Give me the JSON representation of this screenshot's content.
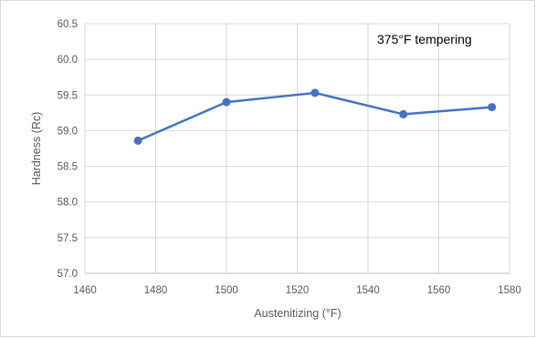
{
  "chart_data": {
    "type": "line",
    "title": "",
    "annotation": "375°F tempering",
    "xlabel": "Austenitizing (°F)",
    "ylabel": "Hardness (Rc)",
    "xlim": [
      1460,
      1580
    ],
    "ylim": [
      57.0,
      60.5
    ],
    "x_ticks": [
      "1460",
      "1480",
      "1500",
      "1520",
      "1540",
      "1560",
      "1580"
    ],
    "y_ticks": [
      "57.0",
      "57.5",
      "58.0",
      "58.5",
      "59.0",
      "59.5",
      "60.0",
      "60.5"
    ],
    "grid": true,
    "legend": "none",
    "series": [
      {
        "x": [
          1475,
          1500,
          1525,
          1550,
          1575
        ],
        "values": [
          58.86,
          59.4,
          59.53,
          59.23,
          59.33
        ],
        "color": "#4472c4"
      }
    ]
  }
}
